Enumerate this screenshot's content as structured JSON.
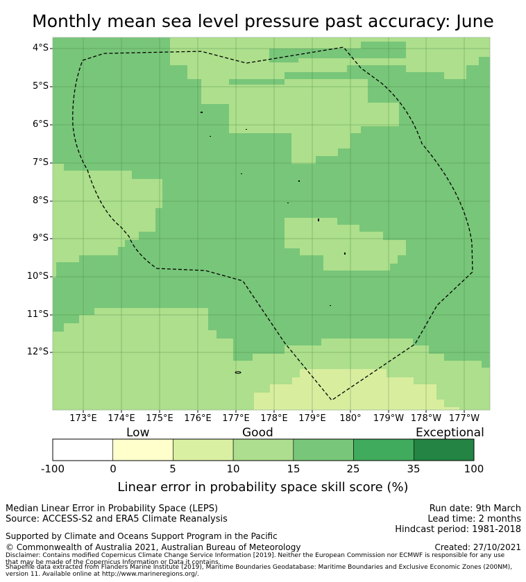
{
  "title": "Monthly mean sea level pressure past accuracy: June",
  "map": {
    "lat_labels": [
      "4°S",
      "5°S",
      "6°S",
      "7°S",
      "8°S",
      "9°S",
      "10°S",
      "11°S",
      "12°S"
    ],
    "lon_labels": [
      "173°E",
      "174°E",
      "175°E",
      "176°E",
      "177°E",
      "178°E",
      "179°E",
      "180°",
      "179°W",
      "178°W",
      "177°W"
    ],
    "region_outline": "dashed boundary (Exclusive Economic Zone)",
    "colors": {
      "band_5_10": "#d9ed9f",
      "band_10_15": "#addf8c",
      "band_15_25": "#78c679",
      "land": "#000000"
    }
  },
  "colorbar": {
    "category_labels": [
      "Low",
      "Good",
      "Exceptional"
    ],
    "ticks": [
      "-100",
      "0",
      "5",
      "10",
      "15",
      "25",
      "35",
      "100"
    ],
    "bins": [
      {
        "range": "-100 to 0",
        "color": "#ffffff"
      },
      {
        "range": "0 to 5",
        "color": "#ffffcc"
      },
      {
        "range": "5 to 10",
        "color": "#d9f0a3"
      },
      {
        "range": "10 to 15",
        "color": "#addd8e"
      },
      {
        "range": "15 to 25",
        "color": "#78c679"
      },
      {
        "range": "25 to 35",
        "color": "#41ab5d"
      },
      {
        "range": "35 to 100",
        "color": "#238443"
      }
    ],
    "label": "Linear error in probability space skill score (%)"
  },
  "footer": {
    "line1": "Median Linear Error in Probability Space (LEPS)",
    "line2": "Source: ACCESS-S2 and ERA5 Climate Reanalysis",
    "run_date": "Run date: 9th March",
    "lead_time": "Lead time: 2 months",
    "hindcast": "Hindcast period: 1981-2018",
    "support": "Supported by Climate and Oceans Support Program in the Pacific",
    "copyright": "© Commonwealth of Australia 2021, Australian Bureau of Meteorology",
    "created": "Created: 27/10/2021",
    "disclaimer1": "Disclaimer: Contains modified Copernicus Climate Change Service Information [2019]. Neither the European Commission nor ECMWF is responsible for any use",
    "disclaimer2": "that may be made of the Copernicus Information or Data it contains.",
    "shapefile1": "Shapefile data extracted from Flanders Marine Institute (2019), Maritime Boundaries Geodatabase: Maritime Boundaries and Exclusive Economic Zones (200NM),",
    "shapefile2": "version 11. Available online at http://www.marineregions.org/."
  }
}
